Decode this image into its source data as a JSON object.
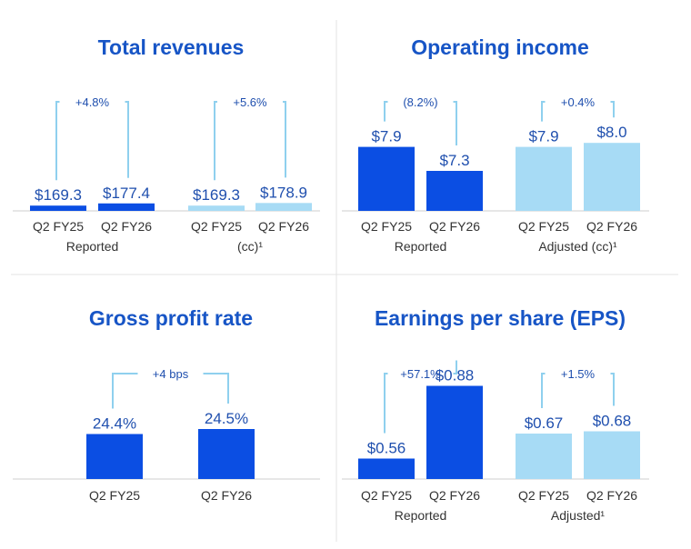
{
  "colors": {
    "title": "#1755c6",
    "dark_bar": "#0b4ee3",
    "light_bar": "#a7dbf5",
    "bracket": "#8fd0ee",
    "value_text": "#1f4fae",
    "label_text": "#333333"
  },
  "chart_data": [
    {
      "type": "bar",
      "title": "Total revenues",
      "groups": [
        {
          "label": "Reported",
          "change": "+4.8%",
          "bars": [
            {
              "category": "Q2 FY25",
              "value": 169.3,
              "label": "$169.3",
              "style": "dark"
            },
            {
              "category": "Q2 FY26",
              "value": 177.4,
              "label": "$177.4",
              "style": "dark"
            }
          ]
        },
        {
          "label": "(cc)¹",
          "change": "+5.6%",
          "bars": [
            {
              "category": "Q2 FY25",
              "value": 169.3,
              "label": "$169.3",
              "style": "light"
            },
            {
              "category": "Q2 FY26",
              "value": 178.9,
              "label": "$178.9",
              "style": "light"
            }
          ]
        }
      ]
    },
    {
      "type": "bar",
      "title": "Operating income",
      "groups": [
        {
          "label": "Reported",
          "change": "(8.2%)",
          "bars": [
            {
              "category": "Q2 FY25",
              "value": 7.9,
              "label": "$7.9",
              "style": "dark"
            },
            {
              "category": "Q2 FY26",
              "value": 7.3,
              "label": "$7.3",
              "style": "dark"
            }
          ]
        },
        {
          "label": "Adjusted (cc)¹",
          "change": "+0.4%",
          "bars": [
            {
              "category": "Q2 FY25",
              "value": 7.9,
              "label": "$7.9",
              "style": "light"
            },
            {
              "category": "Q2 FY26",
              "value": 8.0,
              "label": "$8.0",
              "style": "light"
            }
          ]
        }
      ]
    },
    {
      "type": "bar",
      "title": "Gross profit rate",
      "groups": [
        {
          "label": "",
          "change": "+4 bps",
          "bars": [
            {
              "category": "Q2 FY25",
              "value": 24.4,
              "label": "24.4%",
              "style": "dark"
            },
            {
              "category": "Q2 FY26",
              "value": 24.5,
              "label": "24.5%",
              "style": "dark"
            }
          ]
        }
      ]
    },
    {
      "type": "bar",
      "title": "Earnings per share (EPS)",
      "groups": [
        {
          "label": "Reported",
          "change": "+57.1%",
          "bars": [
            {
              "category": "Q2 FY25",
              "value": 0.56,
              "label": "$0.56",
              "style": "dark"
            },
            {
              "category": "Q2 FY26",
              "value": 0.88,
              "label": "$0.88",
              "style": "dark"
            }
          ]
        },
        {
          "label": "Adjusted¹",
          "change": "+1.5%",
          "bars": [
            {
              "category": "Q2 FY25",
              "value": 0.67,
              "label": "$0.67",
              "style": "light"
            },
            {
              "category": "Q2 FY26",
              "value": 0.68,
              "label": "$0.68",
              "style": "light"
            }
          ]
        }
      ]
    }
  ]
}
